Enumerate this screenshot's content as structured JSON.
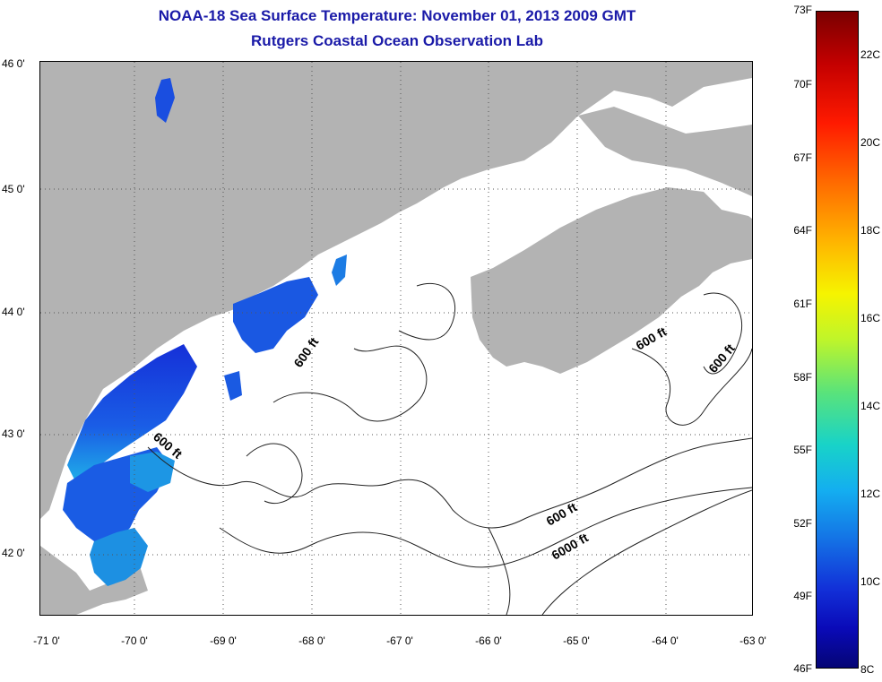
{
  "title_line1": "NOAA-18 Sea Surface Temperature:  November 01, 2013 2009 GMT",
  "title_line2": "Rutgers Coastal Ocean Observation Lab",
  "lat_labels": [
    "46 0'",
    "45 0'",
    "44 0'",
    "43 0'",
    "42 0'"
  ],
  "lon_labels": [
    "-71 0'",
    "-70 0'",
    "-69 0'",
    "-68 0'",
    "-67 0'",
    "-66 0'",
    "-65 0'",
    "-64 0'",
    "-63 0'"
  ],
  "contour_labels": [
    "600 ft",
    "600 ft",
    "600 ft",
    "600 ft",
    "600 ft",
    "6000 ft"
  ],
  "colorbar": {
    "fahrenheit_labels": [
      "73F",
      "70F",
      "67F",
      "64F",
      "61F",
      "58F",
      "55F",
      "52F",
      "49F",
      "46F"
    ],
    "celsius_labels": [
      "22C",
      "20C",
      "18C",
      "16C",
      "14C",
      "12C",
      "10C",
      "8C"
    ]
  },
  "colors": {
    "title": "#1a1aa8",
    "land": "#b3b3b3",
    "water_no_data": "#ffffff",
    "sst_cold": "#1a3ad8",
    "sst_mid": "#1c9ae0"
  }
}
